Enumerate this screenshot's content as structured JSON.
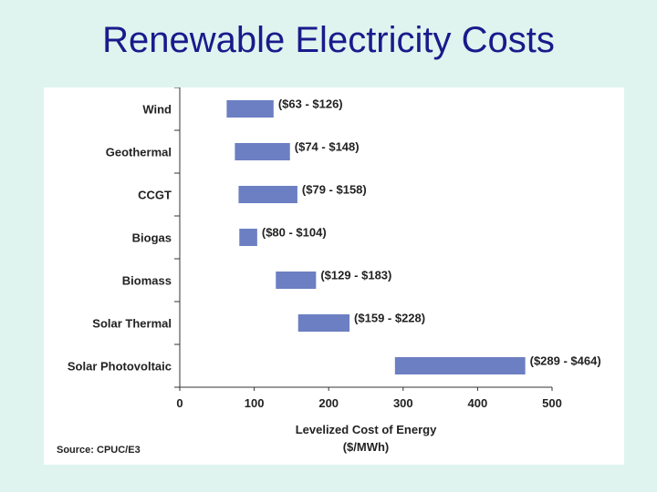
{
  "slide": {
    "title": "Renewable Electricity Costs",
    "source": "Source: CPUC/E3"
  },
  "chart_data": {
    "type": "bar",
    "orientation": "horizontal",
    "title": "",
    "xlabel_line1": "Levelized Cost of Energy",
    "xlabel_line2": "($/MWh)",
    "xlim": [
      0,
      500
    ],
    "xticks": [
      0,
      100,
      200,
      300,
      400,
      500
    ],
    "grid": false,
    "bar_color": "#6b7fc2",
    "categories": [
      "Wind",
      "Geothermal",
      "CCGT",
      "Biogas",
      "Biomass",
      "Solar Thermal",
      "Solar Photovoltaic"
    ],
    "ranges": [
      {
        "low": 63,
        "high": 126,
        "label": "($63 - $126)"
      },
      {
        "low": 74,
        "high": 148,
        "label": "($74 - $148)"
      },
      {
        "low": 79,
        "high": 158,
        "label": "($79 - $158)"
      },
      {
        "low": 80,
        "high": 104,
        "label": "($80 - $104)"
      },
      {
        "low": 129,
        "high": 183,
        "label": "($129 - $183)"
      },
      {
        "low": 159,
        "high": 228,
        "label": "($159 - $228)"
      },
      {
        "low": 289,
        "high": 464,
        "label": "($289 - $464)"
      }
    ]
  }
}
